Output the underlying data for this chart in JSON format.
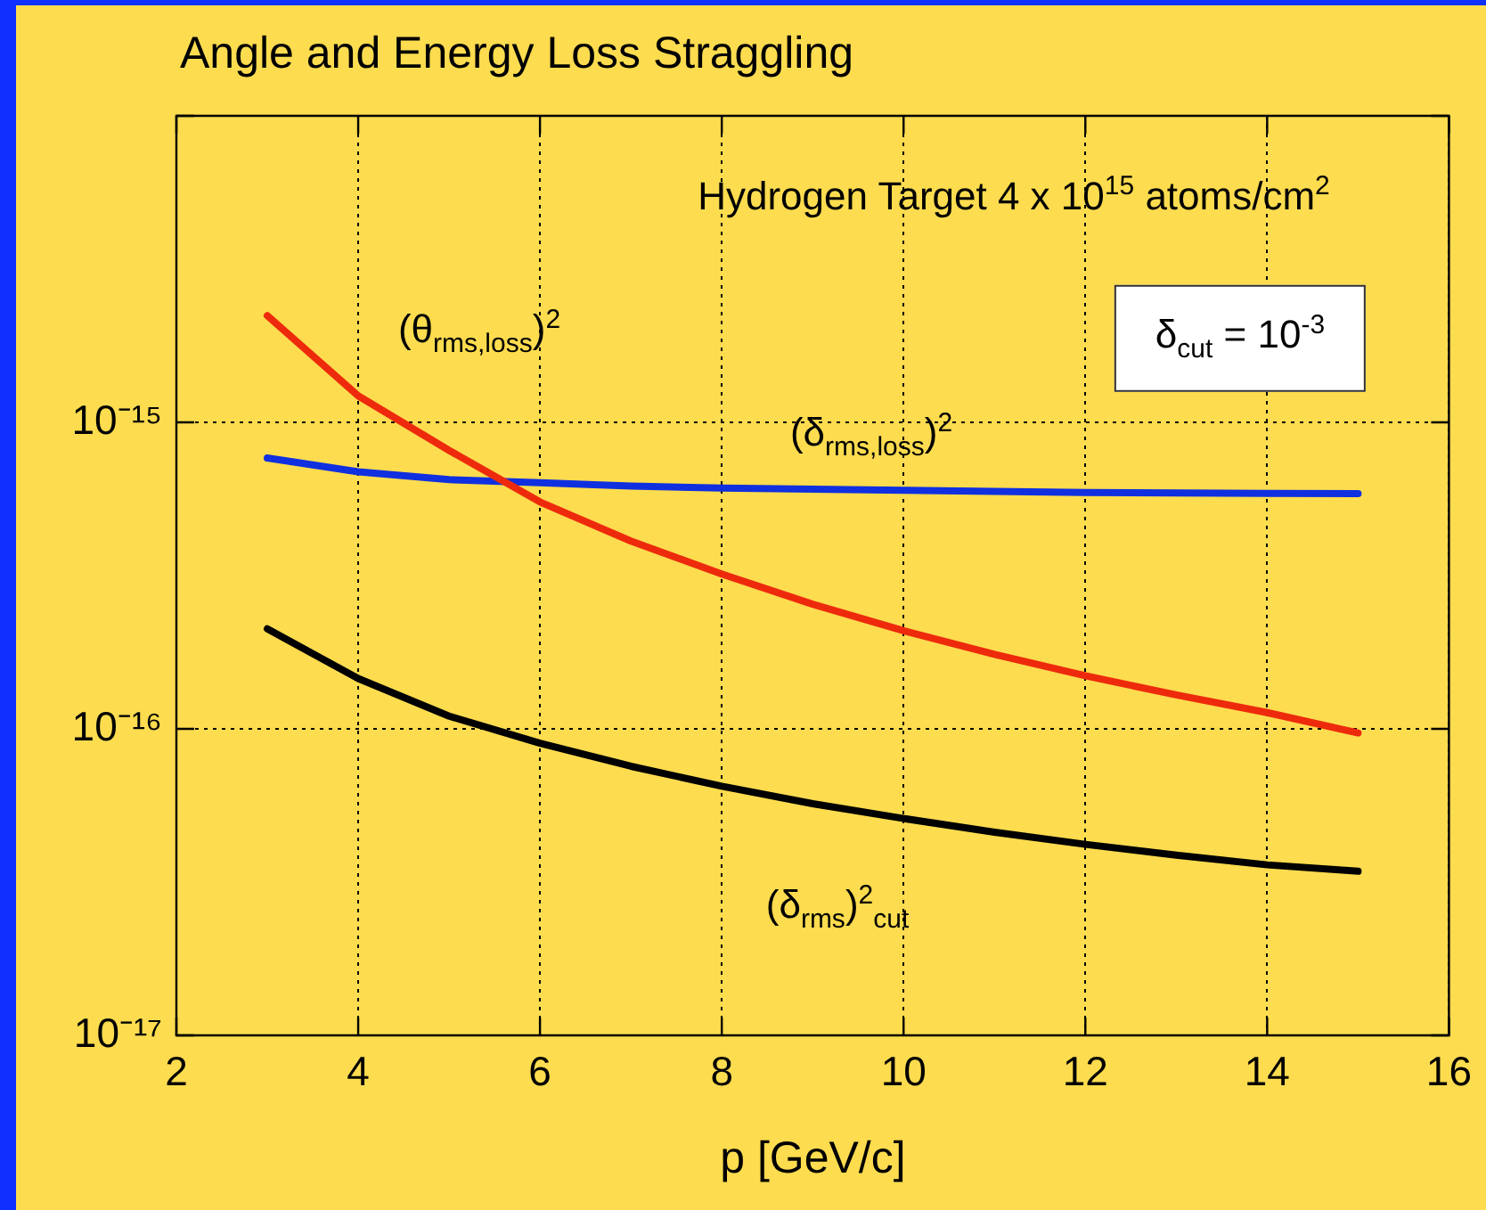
{
  "chart_data": {
    "type": "line",
    "title": "Angle and Energy Loss Straggling",
    "xlabel": "p [GeV/c]",
    "x": [
      3,
      4,
      5,
      6,
      7,
      8,
      9,
      10,
      11,
      12,
      13,
      14,
      15
    ],
    "series": [
      {
        "name": "(θ$_{rms,loss}$)$^{2}$",
        "color": "#ee2a0c",
        "values": [
          2.23e-15,
          1.22e-15,
          8.1e-16,
          5.5e-16,
          4.1e-16,
          3.2e-16,
          2.55e-16,
          2.09e-16,
          1.75e-16,
          1.49e-16,
          1.29e-16,
          1.13e-16,
          9.7e-17
        ]
      },
      {
        "name": "(δ$_{rms,loss}$)$^{2}$",
        "color": "#1030e0",
        "values": [
          7.65e-16,
          6.9e-16,
          6.5e-16,
          6.35e-16,
          6.2e-16,
          6.1e-16,
          6.05e-16,
          6e-16,
          5.95e-16,
          5.9e-16,
          5.88e-16,
          5.86e-16,
          5.85e-16
        ]
      },
      {
        "name": "(δ$_{rms}$)$^{2}$$_{cut}$",
        "color": "#000000",
        "values": [
          2.12e-16,
          1.46e-16,
          1.1e-16,
          8.98e-17,
          7.55e-17,
          6.5e-17,
          5.7e-17,
          5.1e-17,
          4.6e-17,
          4.2e-17,
          3.87e-17,
          3.6e-17,
          3.43e-17
        ]
      }
    ],
    "xlim": [
      2,
      16
    ],
    "xticks": [
      2,
      4,
      6,
      8,
      10,
      12,
      14,
      16
    ],
    "ylim": [
      1e-17,
      1e-14
    ],
    "yticks": [
      {
        "value": 1e-17,
        "label": "10⁻¹⁷"
      },
      {
        "value": 1e-16,
        "label": "10⁻¹⁶"
      },
      {
        "value": 1e-15,
        "label": "10⁻¹⁵"
      },
      {
        "value": 1e-14,
        "label": null
      }
    ],
    "log": "y",
    "grid": true,
    "legend": false,
    "marker": "none",
    "line_style": "solid",
    "annotations": [
      "Hydrogen Target 4 x 10$^{15}$ atoms/cm$^{2}$",
      "δ$_{cut}$ = 10$^{-3}$"
    ]
  }
}
